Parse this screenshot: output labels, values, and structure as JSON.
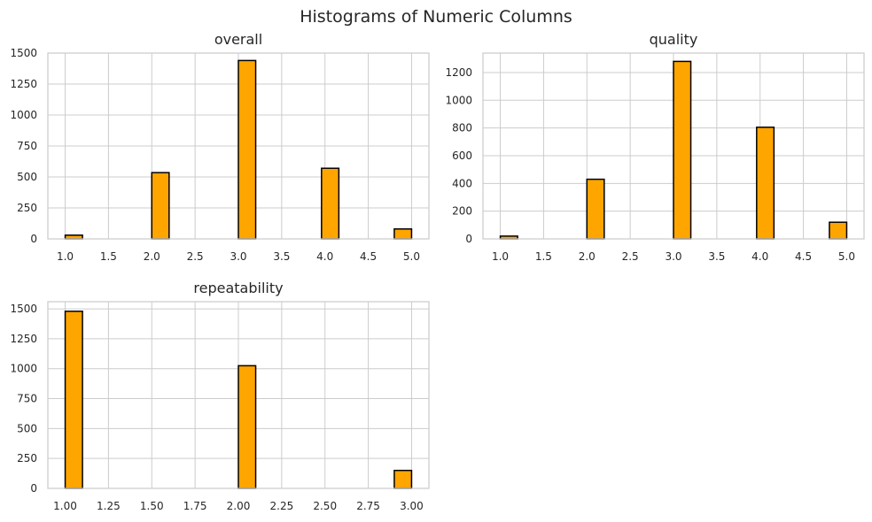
{
  "figure": {
    "title": "Histograms of Numeric Columns"
  },
  "colors": {
    "bar_fill": "#FFA500",
    "bar_edge": "#000000",
    "grid": "#cccccc",
    "text": "#262626"
  },
  "chart_data": [
    {
      "type": "bar",
      "title": "overall",
      "xlabel": "",
      "ylabel": "",
      "grid": true,
      "xlim": [
        0.8,
        5.2
      ],
      "ylim": [
        0,
        1500
      ],
      "xticks": [
        "1.0",
        "1.5",
        "2.0",
        "2.5",
        "3.0",
        "3.5",
        "4.0",
        "4.5",
        "5.0"
      ],
      "yticks": [
        "0",
        "250",
        "500",
        "750",
        "1000",
        "1250",
        "1500"
      ],
      "bin_width": 0.2,
      "bars": [
        {
          "x0": 1.0,
          "value": 30
        },
        {
          "x0": 2.0,
          "value": 535
        },
        {
          "x0": 3.0,
          "value": 1440
        },
        {
          "x0": 3.96,
          "value": 570
        },
        {
          "x0": 4.8,
          "value": 80
        }
      ]
    },
    {
      "type": "bar",
      "title": "quality",
      "xlabel": "",
      "ylabel": "",
      "grid": true,
      "xlim": [
        0.8,
        5.2
      ],
      "ylim": [
        0,
        1340
      ],
      "xticks": [
        "1.0",
        "1.5",
        "2.0",
        "2.5",
        "3.0",
        "3.5",
        "4.0",
        "4.5",
        "5.0"
      ],
      "yticks": [
        "0",
        "200",
        "400",
        "600",
        "800",
        "1000",
        "1200"
      ],
      "bin_width": 0.2,
      "bars": [
        {
          "x0": 1.0,
          "value": 20
        },
        {
          "x0": 2.0,
          "value": 430
        },
        {
          "x0": 3.0,
          "value": 1280
        },
        {
          "x0": 3.96,
          "value": 805
        },
        {
          "x0": 4.8,
          "value": 120
        }
      ]
    },
    {
      "type": "bar",
      "title": "repeatability",
      "xlabel": "",
      "ylabel": "",
      "grid": true,
      "xlim": [
        0.9,
        3.1
      ],
      "ylim": [
        0,
        1560
      ],
      "xticks": [
        "1.00",
        "1.25",
        "1.50",
        "1.75",
        "2.00",
        "2.25",
        "2.50",
        "2.75",
        "3.00"
      ],
      "yticks": [
        "0",
        "250",
        "500",
        "750",
        "1000",
        "1250",
        "1500"
      ],
      "bin_width": 0.1,
      "bars": [
        {
          "x0": 1.0,
          "value": 1480
        },
        {
          "x0": 2.0,
          "value": 1025
        },
        {
          "x0": 2.9,
          "value": 150
        }
      ]
    }
  ]
}
